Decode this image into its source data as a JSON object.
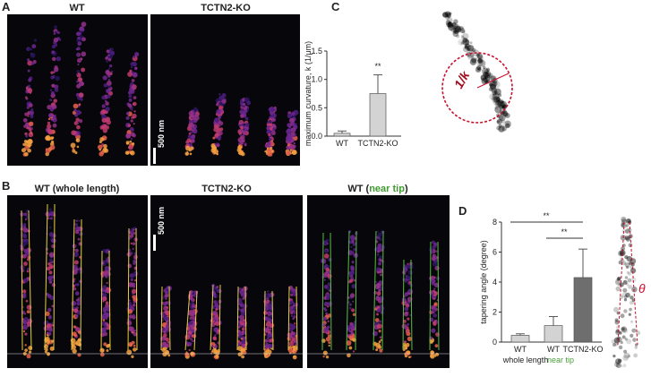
{
  "panel_a": {
    "label": "A",
    "titles": [
      "WT",
      "TCTN2-KO"
    ],
    "scale_bar": "500 nm"
  },
  "panel_b": {
    "label": "B",
    "titles": [
      "WT (whole length)",
      "TCTN2-KO"
    ],
    "title_3": {
      "prefix": "WT (",
      "highlight": "near tip",
      "suffix": ")"
    },
    "scale_bar": "500 nm"
  },
  "chart_data": [
    {
      "type": "bar",
      "panel_label": "C",
      "ylabel": "maximum curvature, k (1/μm)",
      "categories": [
        "WT",
        "TCTN2-KO"
      ],
      "values": [
        0.05,
        0.75
      ],
      "errors": [
        0.04,
        0.33
      ],
      "colors": [
        "#d3d3d3",
        "#d3d3d3"
      ],
      "ylim": [
        0,
        1.5
      ],
      "yticks": [
        {
          "value": 0,
          "label": "0.0"
        },
        {
          "value": 0.5,
          "label": "0.5"
        },
        {
          "value": 1,
          "label": "1.0"
        },
        {
          "value": 1.5,
          "label": "1.5"
        }
      ],
      "annotations": [
        "**"
      ],
      "diagram_label": "1/k"
    },
    {
      "type": "bar",
      "panel_label": "D",
      "ylabel": "tapering angle (degree)",
      "categories": [
        "WT",
        "WT",
        "TCTN2-KO"
      ],
      "sublabels": [
        "whole length",
        "near tip"
      ],
      "sublabel_colors": [
        "#222222",
        "#4a9d3c"
      ],
      "values": [
        0.45,
        1.1,
        4.3
      ],
      "errors": [
        0.1,
        0.6,
        1.9
      ],
      "colors": [
        "#d3d3d3",
        "#d3d3d3",
        "#6e6e6e"
      ],
      "ylim": [
        0,
        8
      ],
      "yticks": [
        0,
        2,
        4,
        6,
        8
      ],
      "annotations": [
        "**",
        "**"
      ],
      "diagram_label": "θ"
    }
  ]
}
